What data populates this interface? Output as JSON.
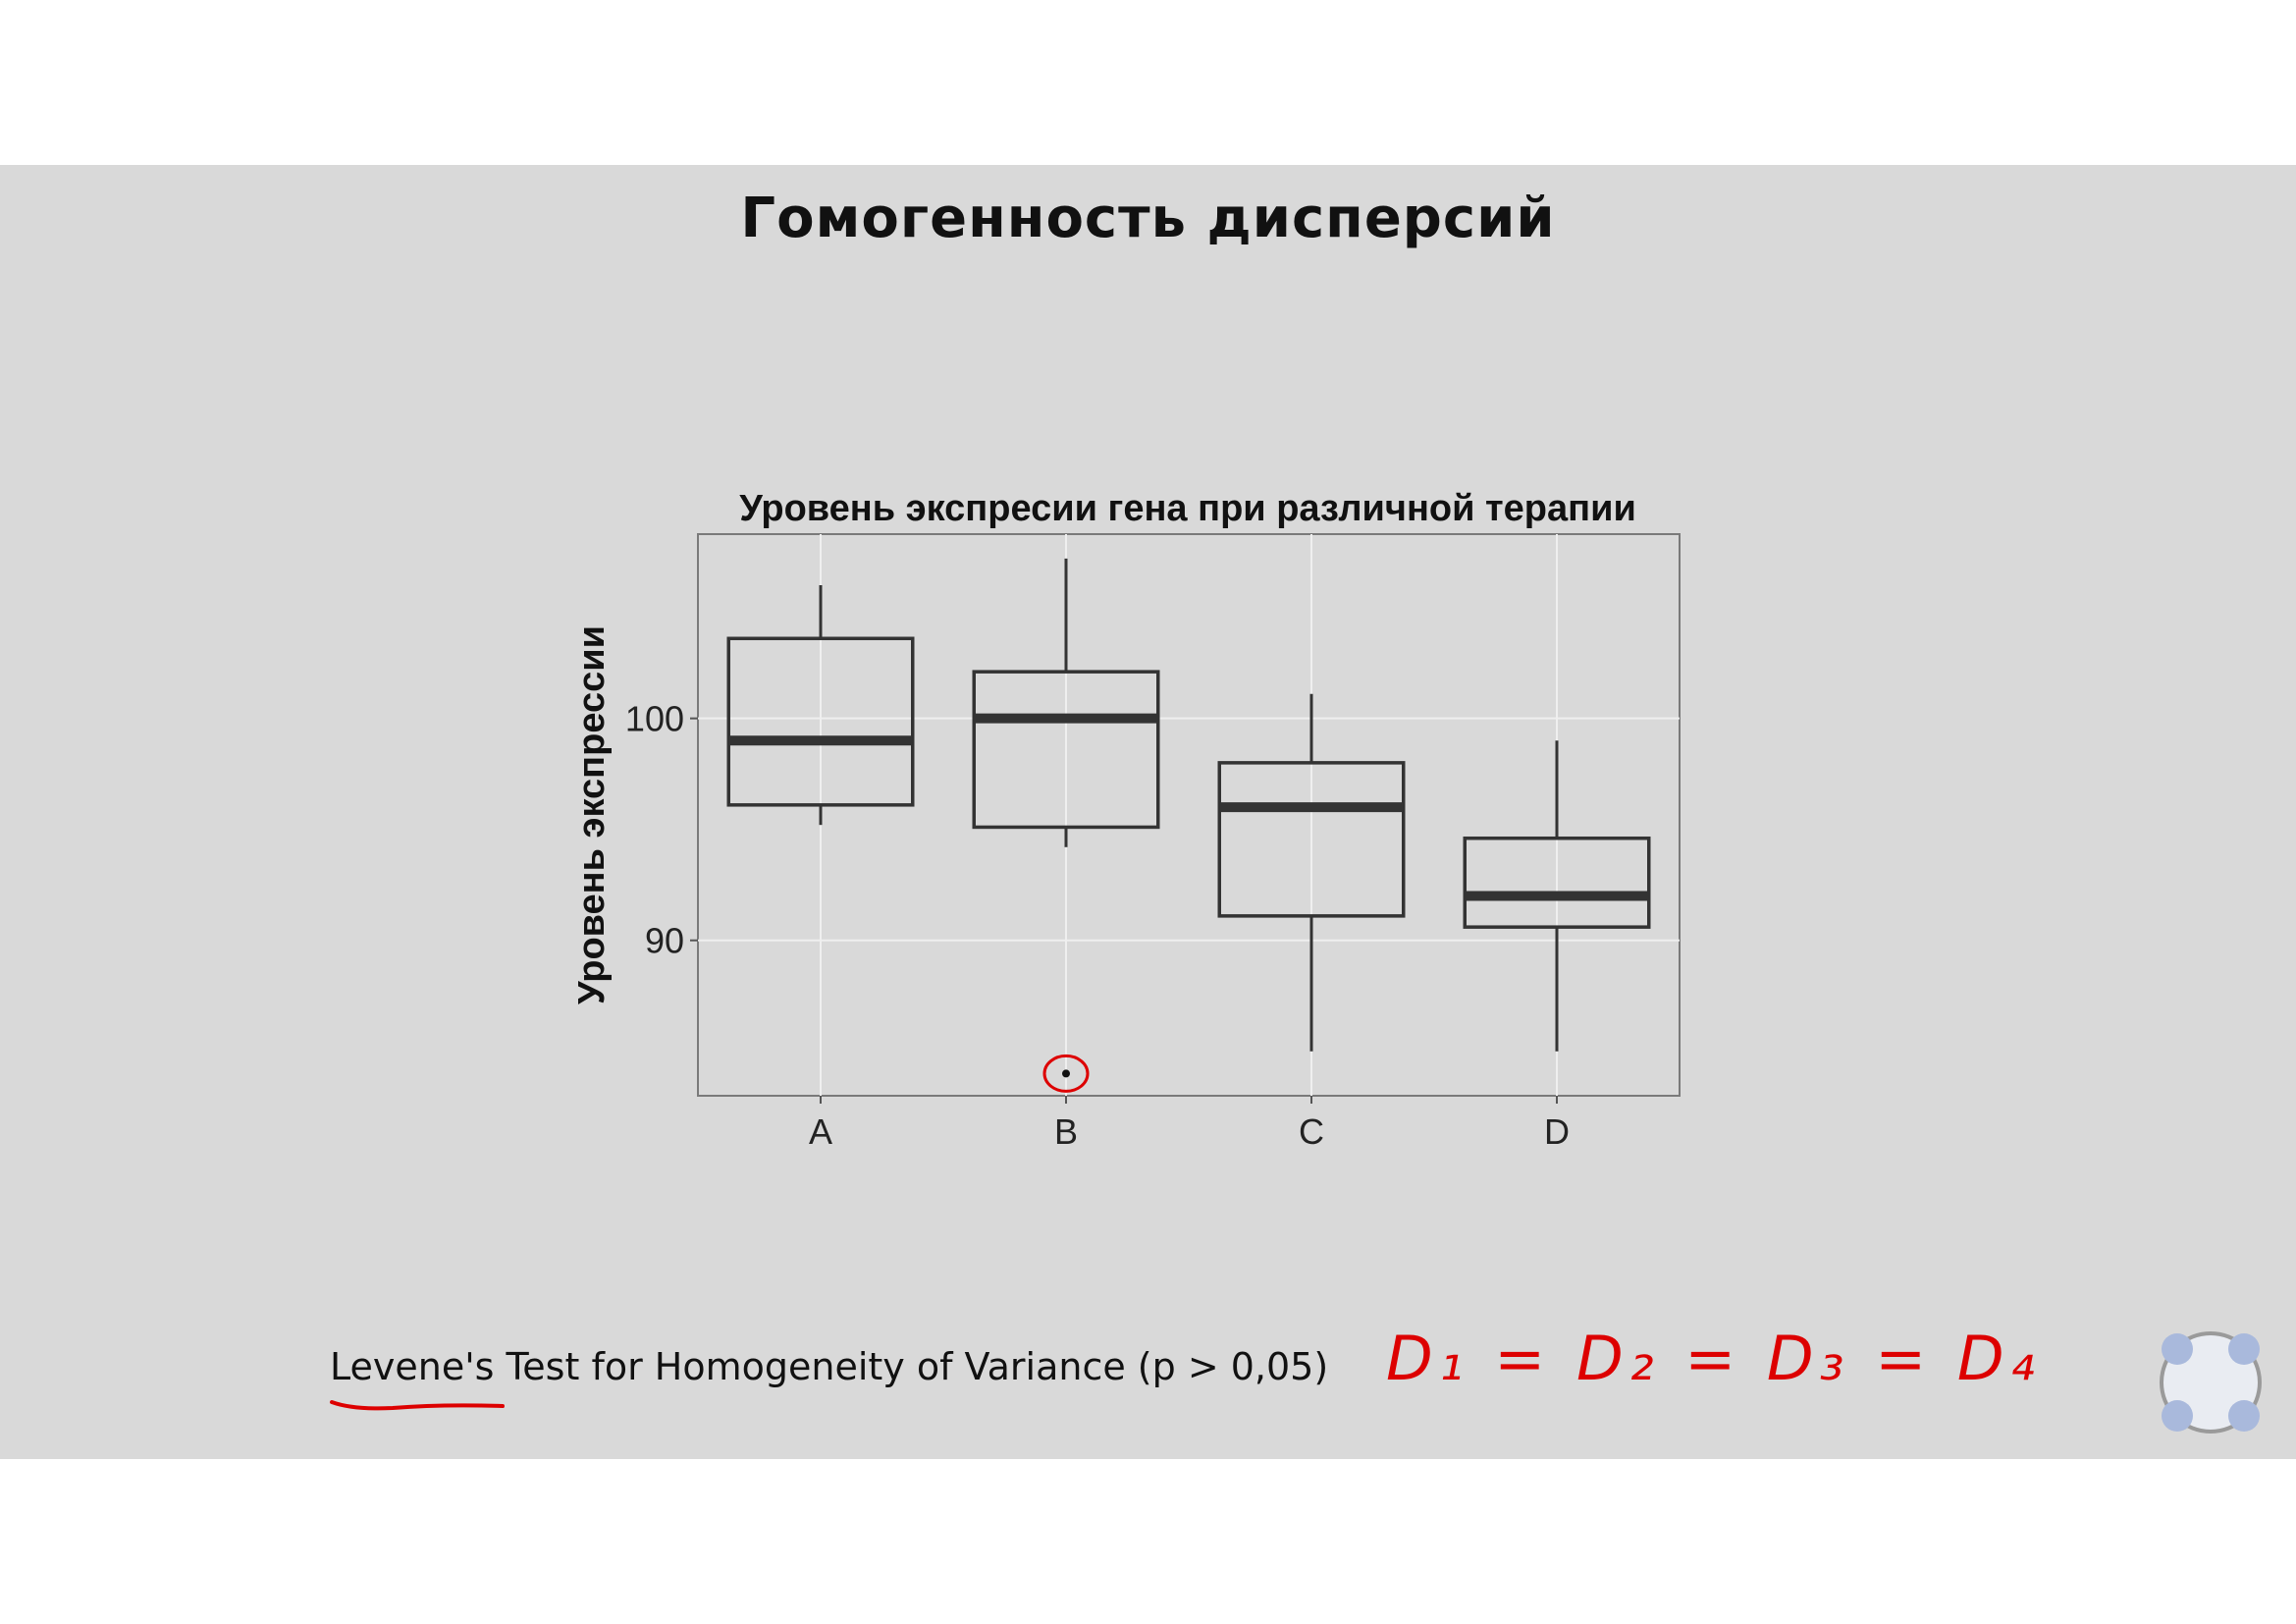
{
  "slide": {
    "title": "Гомогенность дисперсий",
    "footer_text": "Levene's Test for Homogeneity of Variance (p > 0,05)",
    "handwriting": "D₁ = D₂ = D₃ = D₄"
  },
  "colors": {
    "slide_bg": "#d9d9d9",
    "page_bg": "#ffffff",
    "box_stroke": "#333333",
    "annotation": "#dd0000",
    "nav_dots": "#a9b9dc"
  },
  "chart_data": {
    "type": "boxplot",
    "title": "Уровень экспресии гена при различной терапии",
    "xlabel": "",
    "ylabel": "Уровень экспрессии",
    "ylim": [
      83,
      108.3
    ],
    "yticks": [
      90,
      100
    ],
    "ytick_labels": [
      "90",
      "100"
    ],
    "grid": true,
    "categories": [
      "A",
      "B",
      "C",
      "D"
    ],
    "boxes": [
      {
        "name": "A",
        "whisker_low": 95.2,
        "q1": 96.1,
        "median": 99.0,
        "q3": 103.6,
        "whisker_high": 106.0,
        "outliers": []
      },
      {
        "name": "B",
        "whisker_low": 94.2,
        "q1": 95.1,
        "median": 100.0,
        "q3": 102.1,
        "whisker_high": 107.2,
        "outliers": [
          84.0
        ]
      },
      {
        "name": "C",
        "whisker_low": 85.0,
        "q1": 91.1,
        "median": 96.0,
        "q3": 98.0,
        "whisker_high": 101.1,
        "outliers": []
      },
      {
        "name": "D",
        "whisker_low": 85.0,
        "q1": 90.6,
        "median": 92.0,
        "q3": 94.6,
        "whisker_high": 99.0,
        "outliers": []
      }
    ],
    "annotations": [
      {
        "type": "circle",
        "target": "outlier",
        "category": "B",
        "value": 84.0
      }
    ]
  }
}
